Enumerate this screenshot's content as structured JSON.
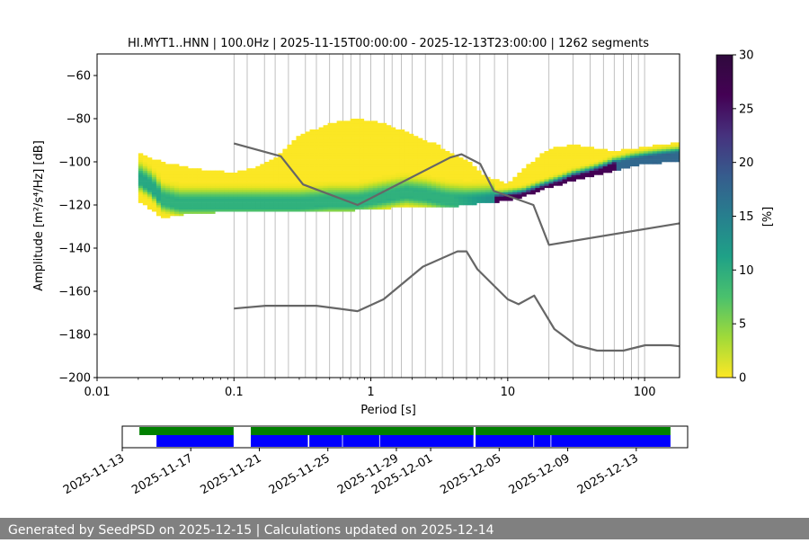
{
  "chart_data": [
    {
      "type": "heatmap",
      "title": "HI.MYT1..HNN | 100.0Hz | 2025-11-15T00:00:00 - 2025-12-13T23:00:00 | 1262 segments",
      "xlabel": "Period [s]",
      "ylabel": "Amplitude [m²/s⁴/Hz] [dB]",
      "xscale": "log",
      "xlim": [
        0.01,
        180
      ],
      "ylim": [
        -200,
        -50
      ],
      "xticks": [
        0.01,
        0.1,
        1,
        10,
        100
      ],
      "xtick_labels": [
        "0.01",
        "0.1",
        "1",
        "10",
        "100"
      ],
      "yticks": [
        -200,
        -180,
        -160,
        -140,
        -120,
        -100,
        -80,
        -60
      ],
      "ytick_labels": [
        "−200",
        "−180",
        "−160",
        "−140",
        "−120",
        "−100",
        "−80",
        "−60"
      ],
      "grid": true,
      "grid_periods": [
        0.1,
        0.125,
        0.167,
        0.2,
        0.25,
        0.333,
        0.4,
        0.5,
        0.625,
        0.714,
        0.833,
        1,
        1.25,
        1.43,
        1.67,
        2,
        2.5,
        3.33,
        4,
        5,
        6.25,
        8,
        10,
        20,
        30,
        40,
        50,
        60,
        70,
        80,
        90,
        100
      ],
      "density": {
        "colormap": "viridis_r",
        "min_period": 0.02,
        "mode_periods": [
          0.02,
          0.025,
          0.03,
          0.04,
          0.05,
          0.07,
          0.1,
          0.15,
          0.2,
          0.3,
          0.5,
          0.8,
          1.2,
          1.8,
          2.5,
          3.5,
          5,
          7,
          10,
          13,
          16,
          20,
          25,
          30,
          40,
          50,
          60,
          80,
          100,
          130,
          180
        ],
        "mode_values": [
          -108,
          -112,
          -118,
          -120,
          -120,
          -120,
          -120,
          -120,
          -120,
          -120,
          -119,
          -119,
          -117,
          -115,
          -116,
          -118,
          -119,
          -119,
          -118,
          -117,
          -115,
          -113,
          -111,
          -109,
          -107,
          -105,
          -103,
          -101,
          -100,
          -99,
          -98
        ],
        "low_periods": [
          0.02,
          0.03,
          0.05,
          0.1,
          0.3,
          0.6,
          1,
          2,
          4,
          5,
          7,
          10,
          15,
          20,
          30,
          60,
          100,
          180
        ],
        "low_values": [
          -118,
          -126,
          -124,
          -123,
          -123,
          -123,
          -122,
          -121,
          -121,
          -120,
          -119,
          -118,
          -115,
          -112,
          -109,
          -104,
          -101,
          -100
        ],
        "high_periods": [
          0.02,
          0.03,
          0.05,
          0.1,
          0.15,
          0.2,
          0.3,
          0.5,
          0.8,
          1.2,
          2,
          3,
          4,
          5,
          7,
          10,
          15,
          20,
          30,
          60,
          100,
          180
        ],
        "high_values": [
          -97,
          -101,
          -104,
          -106,
          -103,
          -99,
          -89,
          -83,
          -81,
          -83,
          -88,
          -93,
          -97,
          -100,
          -108,
          -111,
          -101,
          -95,
          -93,
          -96,
          -94,
          -92
        ]
      },
      "reference_curves": [
        {
          "periods": [
            0.1,
            0.17,
            0.4,
            0.8,
            1.24,
            2.4,
            4.3,
            5,
            6,
            10,
            12,
            15.6,
            21.9,
            31.6,
            45,
            70,
            101,
            154,
            180
          ],
          "values": [
            -168,
            -166.7,
            -166.7,
            -169.2,
            -163.7,
            -148.6,
            -141.5,
            -141.5,
            -149.8,
            -163.7,
            -166,
            -162,
            -177.5,
            -185,
            -187.5,
            -187.5,
            -185,
            -185,
            -185.5
          ]
        },
        {
          "periods": [
            0.1,
            0.22,
            0.32,
            0.8,
            3.8,
            4.6,
            6.3,
            7.9,
            15.4,
            20,
            180
          ],
          "values": [
            -91.5,
            -97.4,
            -110.5,
            -120,
            -98,
            -96.5,
            -101,
            -113.5,
            -120,
            -138.5,
            -128.5
          ]
        }
      ]
    },
    {
      "type": "colorbar",
      "label": "[%]",
      "range": [
        0,
        30
      ],
      "ticks": [
        0,
        5,
        10,
        15,
        20,
        25,
        30
      ],
      "tick_labels": [
        "0",
        "5",
        "10",
        "15",
        "20",
        "25",
        "30"
      ]
    },
    {
      "type": "timeline",
      "date_labels": [
        "2025-11-13",
        "2025-11-17",
        "2025-11-21",
        "2025-11-25",
        "2025-11-29",
        "2025-12-01",
        "2025-12-05",
        "2025-12-09",
        "2025-12-13"
      ],
      "x_min": "2025-11-13",
      "x_max": "2025-12-16",
      "color_top": "#008000",
      "color_bottom": "#0000ff",
      "top_segments": [
        [
          "2025-11-14",
          "2025-11-19 12:00"
        ],
        [
          "2025-11-20 12:00",
          "2025-12-03 12:00"
        ],
        [
          "2025-12-03 15:00",
          "2025-12-15"
        ]
      ],
      "bottom_segments": [
        [
          "2025-11-15",
          "2025-11-19 12:00"
        ],
        [
          "2025-11-20 12:00",
          "2025-11-23 20:00"
        ],
        [
          "2025-11-23 22:00",
          "2025-11-25 20:00"
        ],
        [
          "2025-11-25 21:00",
          "2025-11-28"
        ],
        [
          "2025-11-28 01:00",
          "2025-12-03 12:00"
        ],
        [
          "2025-12-03 15:00",
          "2025-12-07"
        ],
        [
          "2025-12-07 01:00",
          "2025-12-08"
        ],
        [
          "2025-12-08 01:00",
          "2025-12-15"
        ]
      ]
    }
  ],
  "footer": {
    "text": "Generated by SeedPSD on 2025-12-15 | Calculations updated on 2025-12-14"
  }
}
